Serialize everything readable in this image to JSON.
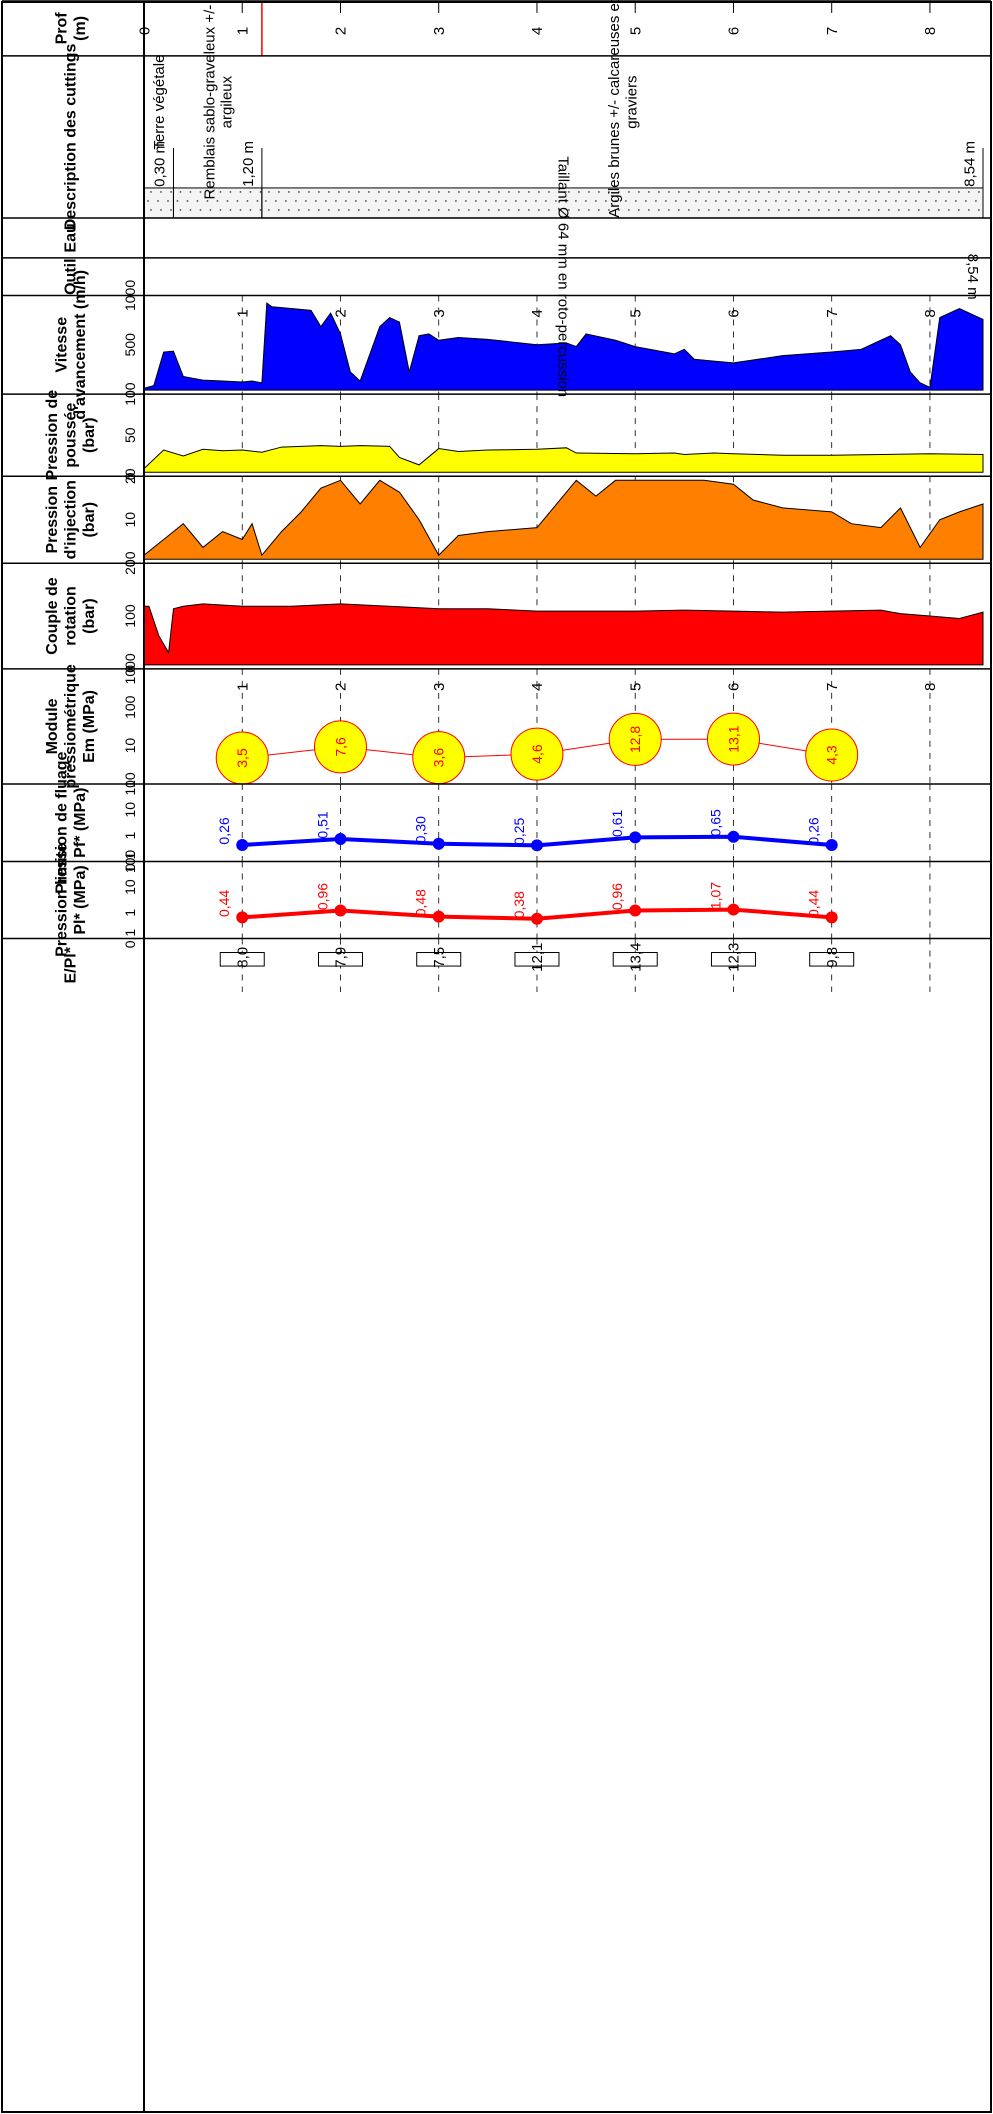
{
  "columns": {
    "prof": "Prof\n(m)",
    "description": "Description des cuttings",
    "eau": "Eau",
    "outil": "Outil",
    "vitesse": "Vitesse\nd'avancement (m/h)",
    "poussee": "Pression de\npoussée\n(bar)",
    "injection": "Pression\nd'injection\n(bar)",
    "couple": "Couple de\nrotation\n(bar)",
    "module": "Module\npressiométrique\nEm (MPa)",
    "fluage": "Pression de fluage\nPf* (MPa)",
    "limite": "Pression limite\nPl* (MPa)",
    "ratio": "E/Pl*"
  },
  "depth_ticks": [
    "0",
    "1",
    "2",
    "3",
    "4",
    "5",
    "6",
    "7",
    "8"
  ],
  "drill_depth_ticks": [
    "1",
    "2",
    "3",
    "4",
    "5",
    "6",
    "7",
    "8"
  ],
  "lithology": [
    {
      "top": 0.0,
      "bottom": 0.3,
      "pattern": "topsoil",
      "label": "Terre végétale",
      "base_label": "0,30 m"
    },
    {
      "top": 0.3,
      "bottom": 1.2,
      "pattern": "fill",
      "label": "Remblais sablo-graveleux +/-\nargileux",
      "base_label": "1,20 m"
    },
    {
      "top": 1.2,
      "bottom": 8.54,
      "pattern": "clay",
      "label": "Argiles brunes +/- calcareuses et à\ngraviers",
      "base_label": "8,54 m"
    }
  ],
  "water_levels_m": [
    0.0,
    1.2
  ],
  "tool": {
    "label": "Taillant Ø 64 mm en roto-percussion",
    "end_label": "8,54 m"
  },
  "scales": {
    "vitesse": [
      "0",
      "500",
      "1000"
    ],
    "poussee": [
      "0",
      "50",
      "100"
    ],
    "injection": [
      "0",
      "10",
      "20"
    ],
    "couple": [
      "0",
      "100",
      "200"
    ],
    "module": [
      "1",
      "10",
      "100",
      "1000"
    ],
    "fluage": [
      "0,1",
      "1",
      "10",
      "100"
    ],
    "limite": [
      "0,1",
      "1",
      "10",
      "100"
    ]
  },
  "colors": {
    "vitesse": "#0000ff",
    "poussee": "#ffff00",
    "injection": "#ff8000",
    "couple": "#ff0000",
    "module_fill": "#ffff00",
    "module_text": "#ff0000",
    "fluage": "#0000ff",
    "limite": "#ff0000",
    "water": "#ff0000"
  },
  "chart_data": {
    "type": "line",
    "x_label": "Prof (m)",
    "depth_range_m": [
      0,
      8.54
    ],
    "drilling_curves": [
      {
        "name": "Vitesse d'avancement (m/h)",
        "range": [
          0,
          1000
        ],
        "x": [
          0.0,
          0.1,
          0.2,
          0.3,
          0.4,
          0.5,
          0.6,
          0.8,
          1.0,
          1.1,
          1.2,
          1.25,
          1.3,
          1.5,
          1.7,
          1.8,
          1.9,
          2.0,
          2.1,
          2.2,
          2.4,
          2.5,
          2.6,
          2.7,
          2.8,
          2.9,
          3.0,
          3.2,
          3.5,
          4.0,
          4.3,
          4.4,
          4.5,
          4.8,
          5.0,
          5.4,
          5.5,
          5.6,
          5.8,
          6.0,
          6.5,
          7.0,
          7.3,
          7.5,
          7.6,
          7.7,
          7.8,
          7.9,
          8.0,
          8.1,
          8.3,
          8.54
        ],
        "values": [
          20,
          50,
          420,
          430,
          150,
          130,
          110,
          100,
          90,
          100,
          80,
          960,
          920,
          900,
          880,
          700,
          850,
          620,
          200,
          100,
          700,
          800,
          750,
          200,
          600,
          620,
          550,
          580,
          560,
          500,
          520,
          480,
          620,
          550,
          480,
          400,
          450,
          340,
          320,
          300,
          380,
          420,
          450,
          550,
          600,
          500,
          200,
          80,
          30,
          800,
          900,
          780
        ]
      },
      {
        "name": "Pression de poussée (bar)",
        "range": [
          0,
          100
        ],
        "x": [
          0.0,
          0.2,
          0.4,
          0.6,
          0.8,
          1.0,
          1.2,
          1.4,
          1.6,
          1.8,
          2.0,
          2.2,
          2.5,
          2.6,
          2.8,
          3.0,
          3.2,
          3.5,
          4.0,
          4.3,
          4.4,
          5.0,
          5.4,
          5.5,
          5.8,
          6.0,
          6.5,
          7.0,
          7.5,
          8.0,
          8.54
        ],
        "values": [
          5,
          30,
          22,
          31,
          29,
          30,
          27,
          34,
          35,
          36,
          35,
          36,
          35,
          20,
          10,
          32,
          28,
          30,
          31,
          33,
          26,
          25,
          26,
          24,
          26,
          25,
          23,
          23,
          24,
          25,
          24
        ]
      },
      {
        "name": "Pression d'injection (bar)",
        "range": [
          0,
          20
        ],
        "x": [
          0.0,
          0.2,
          0.4,
          0.6,
          0.8,
          1.0,
          1.1,
          1.2,
          1.4,
          1.6,
          1.8,
          2.0,
          2.2,
          2.4,
          2.6,
          2.8,
          3.0,
          3.2,
          3.5,
          4.0,
          4.4,
          4.6,
          4.8,
          5.0,
          5.4,
          5.5,
          5.7,
          6.0,
          6.2,
          6.5,
          7.0,
          7.2,
          7.5,
          7.7,
          7.9,
          8.1,
          8.3,
          8.54
        ],
        "values": [
          1,
          5,
          9,
          3,
          7,
          5,
          9,
          1,
          7,
          12,
          18,
          20,
          14,
          20,
          17,
          10,
          1,
          6,
          7,
          8,
          20,
          16,
          20,
          20,
          20,
          20,
          20,
          19,
          15,
          13,
          12,
          9,
          8,
          13,
          3,
          10,
          12,
          14
        ]
      },
      {
        "name": "Couple de rotation (bar)",
        "range": [
          0,
          200
        ],
        "x": [
          0.0,
          0.05,
          0.15,
          0.25,
          0.3,
          0.4,
          0.6,
          1.0,
          1.5,
          2.0,
          2.5,
          3.0,
          3.5,
          4.0,
          4.5,
          5.0,
          5.5,
          6.0,
          6.5,
          7.0,
          7.5,
          7.7,
          8.0,
          8.3,
          8.54
        ],
        "values": [
          120,
          120,
          60,
          25,
          115,
          120,
          125,
          120,
          120,
          125,
          120,
          115,
          115,
          110,
          110,
          110,
          112,
          110,
          108,
          110,
          112,
          105,
          100,
          95,
          108
        ]
      }
    ],
    "pressuremeter_tests": {
      "depth_m": [
        1,
        2,
        3,
        4,
        5,
        6,
        7
      ],
      "Em_MPa": {
        "name": "Module pressiométrique Em (MPa)",
        "values": [
          3.5,
          7.6,
          3.6,
          4.6,
          12.8,
          13.1,
          4.3
        ],
        "labels": [
          "3,5",
          "7,6",
          "3,6",
          "4,6",
          "12,8",
          "13,1",
          "4,3"
        ]
      },
      "Pf_MPa": {
        "name": "Pression de fluage Pf* (MPa)",
        "values": [
          0.26,
          0.51,
          0.3,
          0.25,
          0.61,
          0.65,
          0.26
        ],
        "labels": [
          "0,26",
          "0,51",
          "0,30",
          "0,25",
          "0,61",
          "0,65",
          "0,26"
        ]
      },
      "Pl_MPa": {
        "name": "Pression limite Pl* (MPa)",
        "values": [
          0.44,
          0.96,
          0.48,
          0.38,
          0.96,
          1.07,
          0.44
        ],
        "labels": [
          "0,44",
          "0,96",
          "0,48",
          "0,38",
          "0,96",
          "1,07",
          "0,44"
        ]
      },
      "E_Pl": {
        "name": "E/Pl*",
        "values": [
          8.0,
          7.9,
          7.5,
          12.1,
          13.4,
          12.3,
          9.8
        ],
        "labels": [
          "8,0",
          "7,9",
          "7,5",
          "12,1",
          "13,4",
          "12,3",
          "9,8"
        ]
      }
    }
  }
}
